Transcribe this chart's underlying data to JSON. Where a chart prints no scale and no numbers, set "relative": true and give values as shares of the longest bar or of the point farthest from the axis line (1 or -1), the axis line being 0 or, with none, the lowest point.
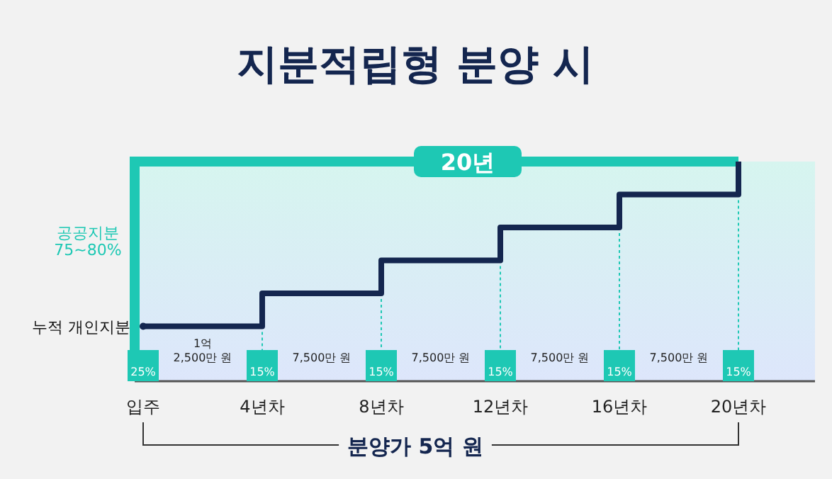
{
  "chart_data": {
    "type": "step",
    "title": "지분적립형 분양 시",
    "categories": [
      "입주",
      "4년차",
      "8년차",
      "12년차",
      "16년차",
      "20년차"
    ],
    "relative": true,
    "series": [
      {
        "name": "누적 개인지분",
        "color": "#14264f",
        "values": [
          0.25,
          0.4,
          0.55,
          0.7,
          0.85,
          1
        ]
      }
    ],
    "ref_lines": [
      {
        "axis": "y",
        "value": 1,
        "label": "20년",
        "color": "#1ec8b4"
      }
    ],
    "xlabel": "분양가 5억 원",
    "annotations": [
      "공공지분 75~80%",
      "1억 2,500만 원",
      "7,500만 원",
      "7,500만 원",
      "7,500만 원",
      "7,500만 원",
      "25%",
      "15%",
      "15%",
      "15%",
      "15%",
      "15%"
    ]
  }
}
